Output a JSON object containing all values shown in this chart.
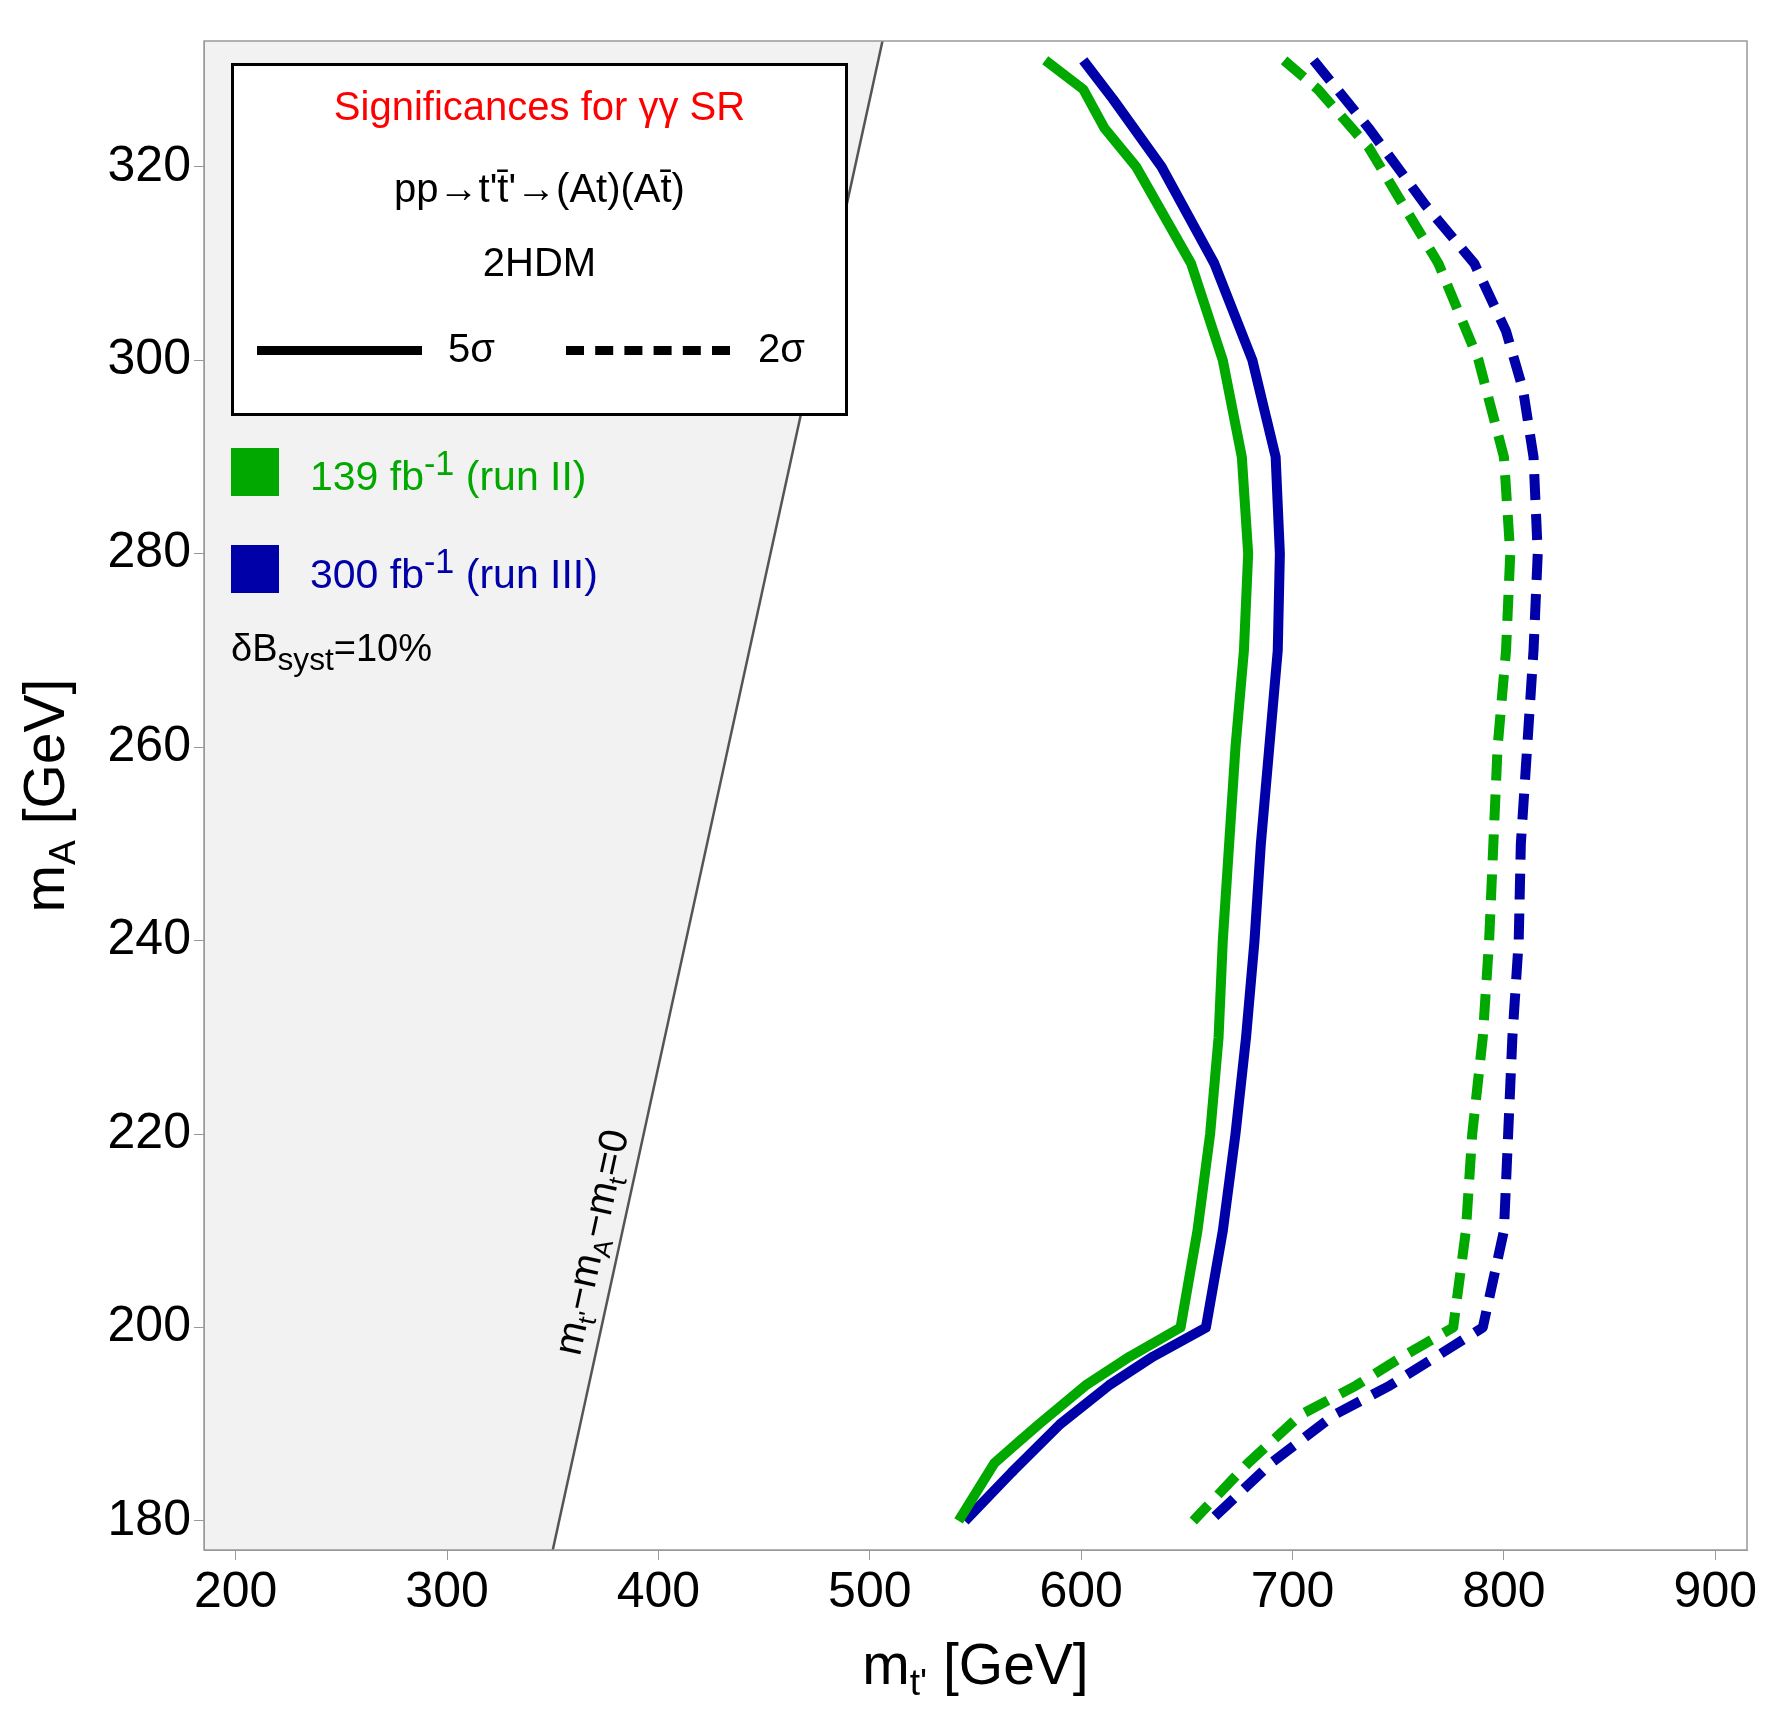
{
  "chart_data": {
    "type": "line",
    "title": "Significances for γγ SR",
    "subtitle": "pp→t't̄'→(At)(At̄)",
    "xlabel": "m$_{t'}$ [GeV]",
    "ylabel": "m$_{A}$ [GeV]",
    "xlim": [
      185,
      915
    ],
    "ylim": [
      177,
      333
    ],
    "xticks": [
      200,
      300,
      400,
      500,
      600,
      700,
      800,
      900
    ],
    "yticks": [
      180,
      200,
      220,
      240,
      260,
      280,
      300,
      320
    ],
    "grid": false,
    "legend": "top left",
    "marker": "none",
    "annotations": [
      "2HDM",
      "5σ",
      "2σ",
      "δB$_{syst}$=10%",
      "m$_{t'}$−m$_{A}$−m$_{t}$=0"
    ],
    "series": [
      {
        "name": "139 fb$^{-1}$ (run II)",
        "color": "#00a800",
        "line_style": "solid",
        "x": [
          583,
          601,
          611,
          626,
          652,
          667,
          676,
          679,
          677,
          673,
          670,
          667,
          665,
          661,
          655,
          647,
          623,
          602,
          580,
          559,
          542
        ],
        "values": [
          331,
          328,
          324,
          320,
          310,
          300,
          290,
          280,
          270,
          260,
          250,
          240,
          230,
          220,
          210,
          200,
          197,
          194,
          190,
          186,
          180
        ]
      },
      {
        "name": "300 fb$^{-1}$ (run III)",
        "color": "#0000a8",
        "line_style": "solid",
        "x": [
          601,
          615,
          638,
          663,
          681,
          692,
          694,
          693,
          689,
          685,
          682,
          678,
          673,
          667,
          659,
          634,
          613,
          590,
          567,
          545
        ],
        "values": [
          331,
          327,
          320,
          310,
          300,
          290,
          280,
          270,
          260,
          250,
          240,
          230,
          220,
          210,
          200,
          197,
          194,
          190,
          185,
          180
        ]
      },
      {
        "color": "#00a800",
        "line_style": "dashed",
        "x": [
          696,
          712,
          736,
          769,
          788,
          800,
          803,
          801,
          797,
          795,
          793,
          790,
          785,
          782,
          776,
          752,
          730,
          704,
          679,
          653
        ],
        "values": [
          331,
          328,
          322,
          310,
          300,
          290,
          280,
          270,
          260,
          250,
          240,
          230,
          220,
          210,
          200,
          197,
          194,
          191,
          186,
          180
        ]
      },
      {
        "color": "#0000a8",
        "line_style": "dashed",
        "x": [
          710,
          736,
          763,
          786,
          801,
          809,
          814,
          816,
          814,
          811,
          808,
          807,
          804,
          802,
          800,
          790,
          768,
          746,
          720,
          690,
          661
        ],
        "values": [
          331,
          324,
          316,
          310,
          303,
          297,
          290,
          280,
          270,
          260,
          250,
          240,
          230,
          220,
          210,
          200,
          197,
          194,
          191,
          186,
          180
        ]
      },
      {
        "color": "#555555",
        "line_style": "solid",
        "x": [
          350,
          506
        ],
        "values": [
          177,
          333
        ]
      }
    ]
  }
}
